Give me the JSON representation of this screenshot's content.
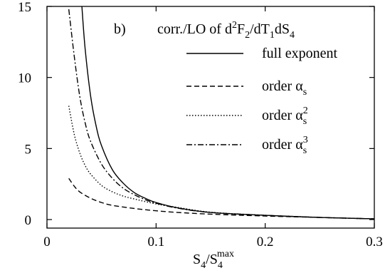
{
  "chart_data": {
    "type": "line",
    "panel_label": "b)",
    "title": {
      "base": "corr./LO of d",
      "sup1": "2",
      "mid1": "F",
      "sub1": "2",
      "mid2": "/dT",
      "sub2": "1",
      "mid3": "dS",
      "sub3": "4"
    },
    "xlabel": {
      "base": "S",
      "sub": "4",
      "slash": "/S",
      "sub2": "4",
      "sup": "max"
    },
    "ylabel": "",
    "xlim": [
      0,
      0.3
    ],
    "ylim": [
      -0.6,
      15
    ],
    "xticks": [
      0,
      0.1,
      0.2,
      0.3
    ],
    "xtick_labels": [
      "0",
      "0.1",
      "0.2",
      "0.3"
    ],
    "yticks": [
      0,
      5,
      10,
      15
    ],
    "ytick_labels": [
      "0",
      "5",
      "10",
      "15"
    ],
    "grid": false,
    "legend_position": "top-right",
    "series": [
      {
        "name": "full exponent",
        "legend": {
          "base": "full exponent",
          "sub": "",
          "sup": ""
        },
        "dash": "solid",
        "x": [
          0.032,
          0.035,
          0.04,
          0.045,
          0.05,
          0.06,
          0.07,
          0.08,
          0.09,
          0.1,
          0.12,
          0.15,
          0.2,
          0.25,
          0.3
        ],
        "y": [
          15.0,
          12.0,
          8.7,
          6.6,
          5.2,
          3.5,
          2.55,
          1.9,
          1.5,
          1.2,
          0.82,
          0.5,
          0.3,
          0.15,
          0.05
        ]
      },
      {
        "name": "order αs",
        "legend": {
          "base": "order α",
          "sub": "s",
          "sup": ""
        },
        "dash": "dashed",
        "x": [
          0.02,
          0.025,
          0.03,
          0.04,
          0.05,
          0.06,
          0.08,
          0.1,
          0.12,
          0.15,
          0.2,
          0.25,
          0.3
        ],
        "y": [
          2.9,
          2.35,
          1.95,
          1.5,
          1.2,
          1.0,
          0.78,
          0.62,
          0.5,
          0.38,
          0.25,
          0.15,
          0.05
        ]
      },
      {
        "name": "order αs²",
        "legend": {
          "base": "order α",
          "sub": "s",
          "sup": "2"
        },
        "dash": "dotted",
        "x": [
          0.02,
          0.025,
          0.03,
          0.035,
          0.04,
          0.05,
          0.06,
          0.07,
          0.08,
          0.1,
          0.12,
          0.15,
          0.2,
          0.25,
          0.3
        ],
        "y": [
          8.0,
          6.0,
          4.7,
          3.8,
          3.2,
          2.4,
          1.95,
          1.65,
          1.45,
          1.1,
          0.85,
          0.52,
          0.3,
          0.15,
          0.05
        ]
      },
      {
        "name": "order αs³",
        "legend": {
          "base": "order α",
          "sub": "s",
          "sup": "3"
        },
        "dash": "dashdot",
        "x": [
          0.02,
          0.025,
          0.03,
          0.035,
          0.04,
          0.05,
          0.06,
          0.07,
          0.08,
          0.09,
          0.1,
          0.12,
          0.15,
          0.2,
          0.25,
          0.3
        ],
        "y": [
          14.8,
          11.5,
          8.7,
          6.8,
          5.5,
          3.9,
          2.9,
          2.2,
          1.75,
          1.4,
          1.15,
          0.8,
          0.5,
          0.3,
          0.15,
          0.05
        ]
      }
    ]
  }
}
